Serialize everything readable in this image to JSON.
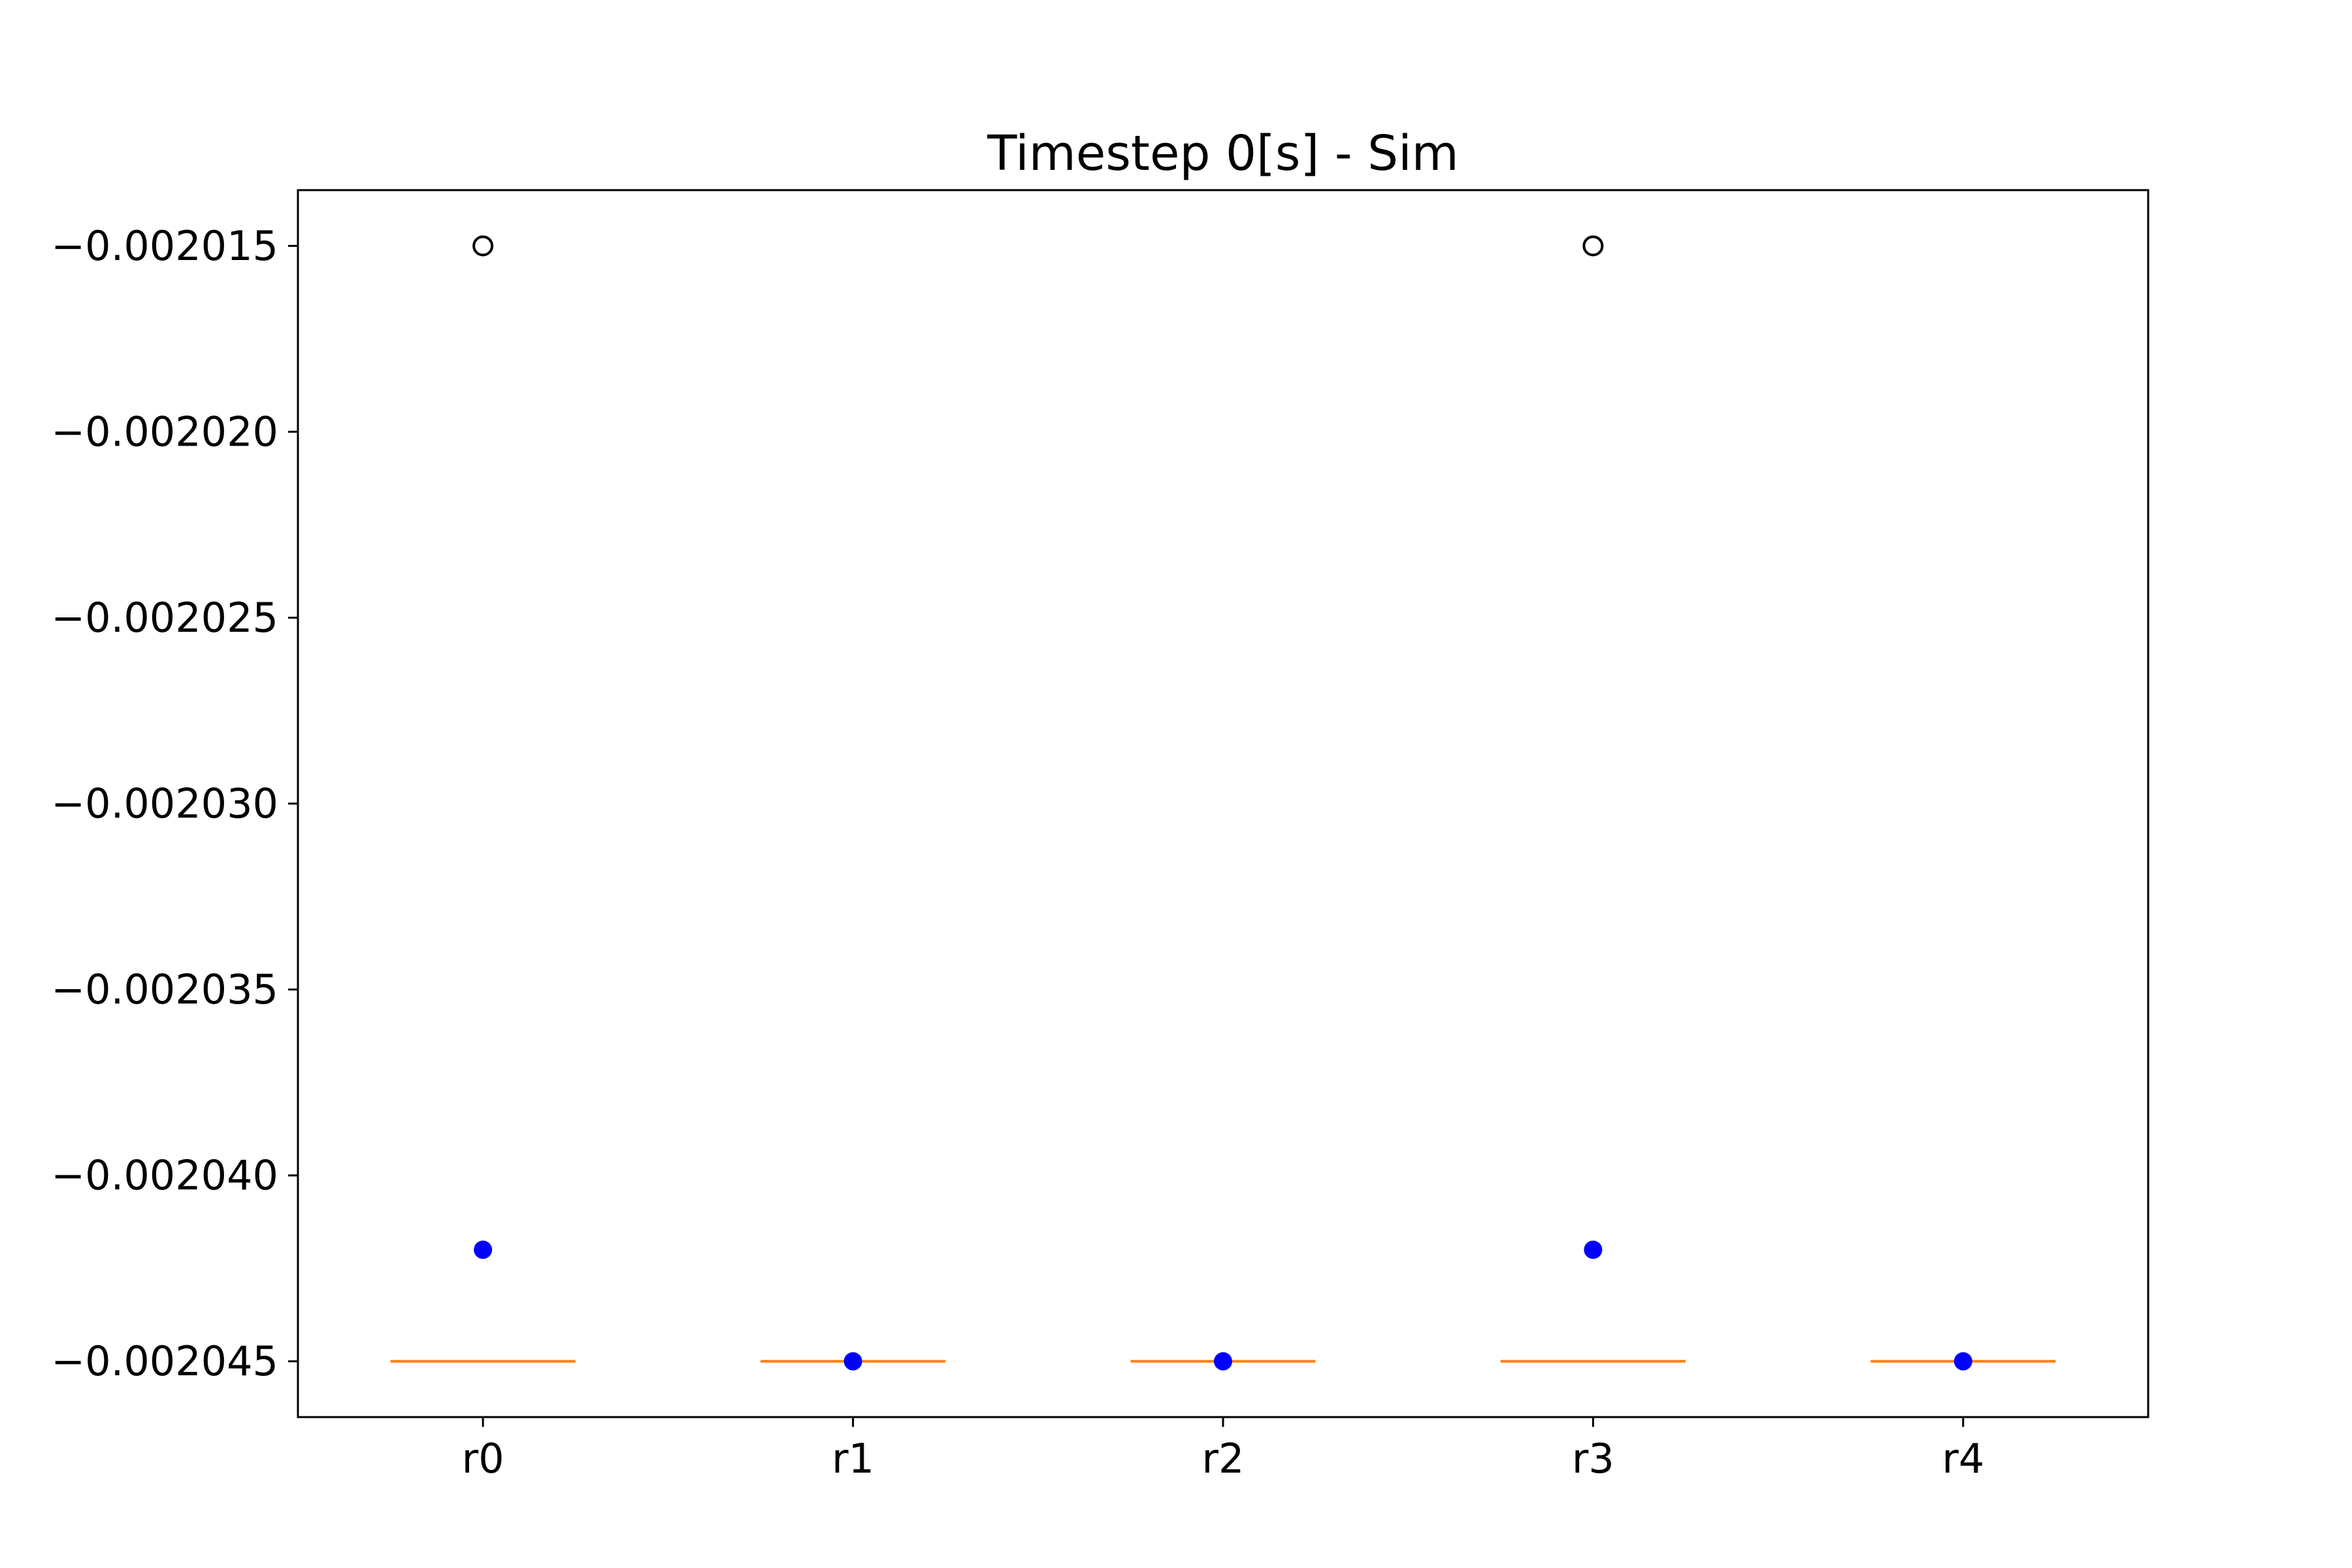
{
  "chart_data": {
    "type": "box",
    "title": "Timestep 0[s] - Sim",
    "xlabel": "",
    "ylabel": "",
    "categories": [
      "r0",
      "r1",
      "r2",
      "r3",
      "r4"
    ],
    "y_ticks": [
      -0.002015,
      -0.00202,
      -0.002025,
      -0.00203,
      -0.002035,
      -0.00204,
      -0.002045
    ],
    "y_tick_labels": [
      "−0.002015",
      "−0.002020",
      "−0.002025",
      "−0.002030",
      "−0.002035",
      "−0.002040",
      "−0.002045"
    ],
    "ylim": [
      -0.0020465,
      -0.0020135
    ],
    "grid": false,
    "medians": [
      -0.002045,
      -0.002045,
      -0.002045,
      -0.002045,
      -0.002045
    ],
    "outliers": [
      [
        -0.002015
      ],
      [],
      [],
      [
        -0.002015
      ],
      []
    ],
    "means": [
      -0.002042,
      -0.002045,
      -0.002045,
      -0.002042,
      -0.002045
    ],
    "colors": {
      "median": "#ff7f0e",
      "mean": "#0000ff",
      "outlier": "#000000",
      "axes": "#000000"
    }
  }
}
